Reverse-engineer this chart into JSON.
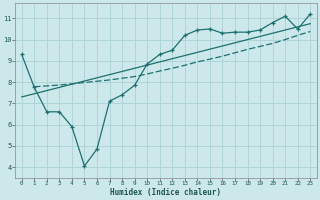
{
  "xlabel": "Humidex (Indice chaleur)",
  "bg_color": "#cde8ea",
  "grid_color": "#b0d5d8",
  "line_color": "#1e7070",
  "xlim": [
    -0.5,
    23.5
  ],
  "ylim": [
    3.5,
    11.7
  ],
  "xticks": [
    0,
    1,
    2,
    3,
    4,
    5,
    6,
    7,
    8,
    9,
    10,
    11,
    12,
    13,
    14,
    15,
    16,
    17,
    18,
    19,
    20,
    21,
    22,
    23
  ],
  "yticks": [
    4,
    5,
    6,
    7,
    8,
    9,
    10,
    11
  ],
  "line1_x": [
    0,
    1,
    2,
    3,
    4,
    5,
    6,
    7,
    8,
    9,
    10,
    11,
    12,
    13,
    14,
    15,
    16,
    17,
    18,
    19,
    20,
    21,
    22,
    23
  ],
  "line1_y": [
    9.3,
    7.75,
    6.6,
    6.6,
    5.9,
    4.05,
    4.85,
    7.1,
    7.4,
    7.85,
    8.85,
    9.3,
    9.5,
    10.2,
    10.45,
    10.5,
    10.3,
    10.35,
    10.35,
    10.45,
    10.8,
    11.1,
    10.5,
    11.2
  ],
  "line2_x": [
    1,
    2,
    3,
    4,
    5,
    6,
    7,
    8,
    9,
    10,
    11,
    12,
    13,
    14,
    15,
    16,
    17,
    18,
    19,
    20,
    21,
    22,
    23
  ],
  "line2_y": [
    7.78,
    7.82,
    7.86,
    7.92,
    7.98,
    8.04,
    8.1,
    8.18,
    8.26,
    8.38,
    8.52,
    8.65,
    8.79,
    8.95,
    9.08,
    9.22,
    9.38,
    9.54,
    9.68,
    9.82,
    10.0,
    10.2,
    10.38
  ],
  "line3_x": [
    0,
    1,
    2,
    3,
    4,
    5,
    6,
    7,
    8,
    9,
    10,
    11,
    12,
    13,
    14,
    15,
    16,
    17,
    18,
    19,
    20,
    21,
    22,
    23
  ],
  "line3_y": [
    7.3,
    7.45,
    7.6,
    7.75,
    7.9,
    8.05,
    8.2,
    8.35,
    8.5,
    8.65,
    8.8,
    8.95,
    9.1,
    9.25,
    9.4,
    9.55,
    9.7,
    9.85,
    10.0,
    10.15,
    10.3,
    10.45,
    10.6,
    10.75
  ]
}
